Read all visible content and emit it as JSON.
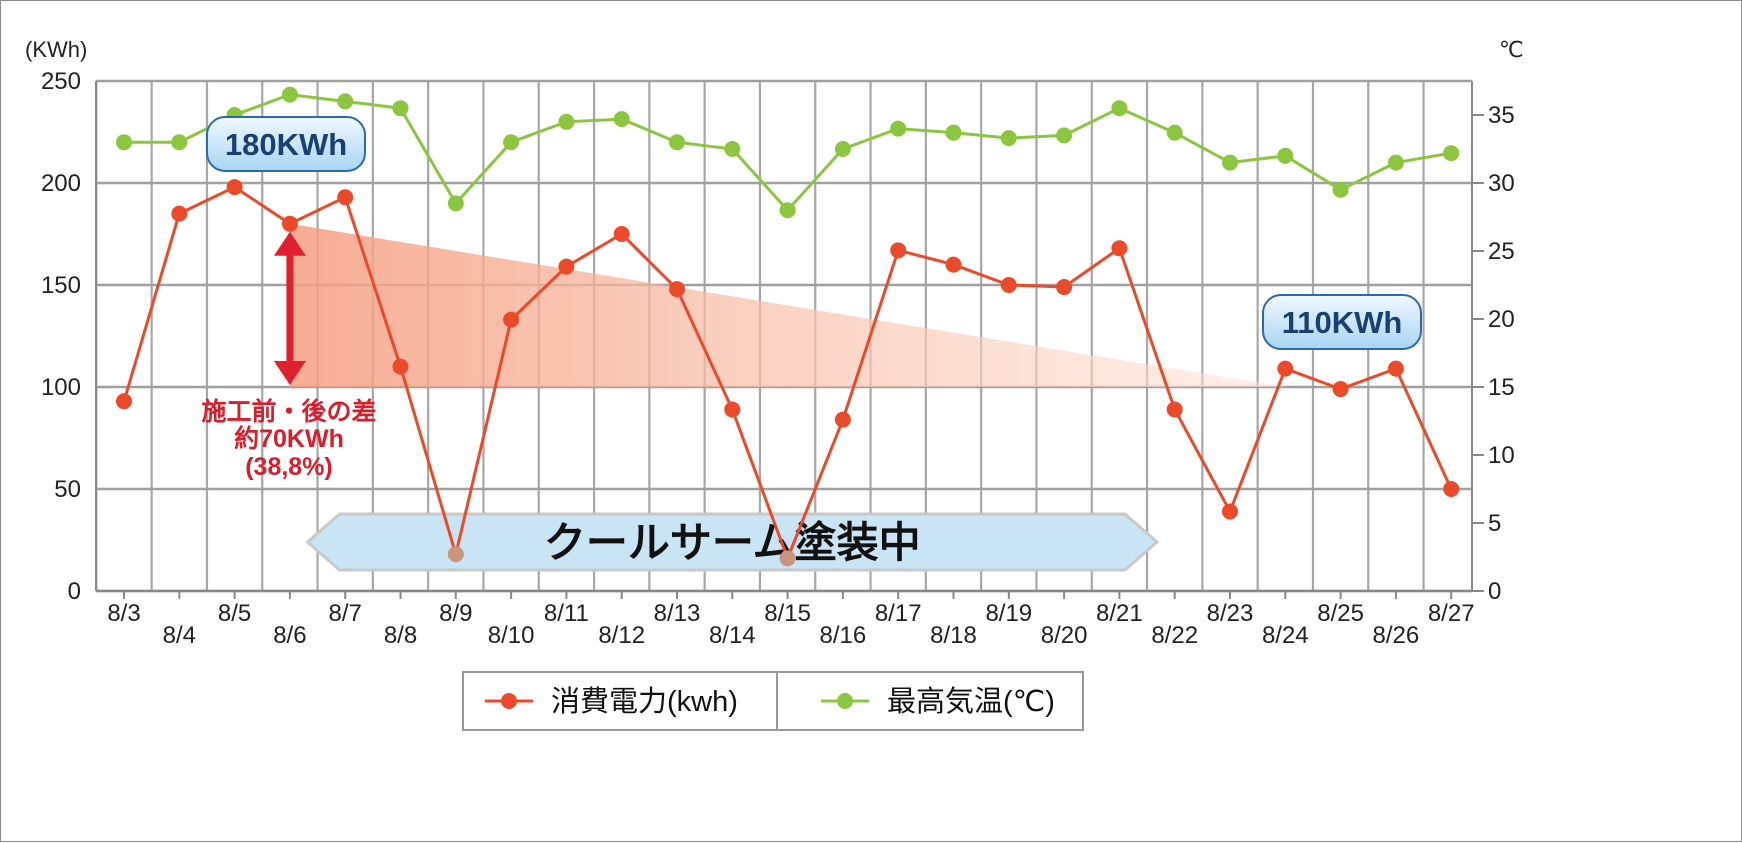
{
  "chart_data": {
    "type": "line",
    "categories": [
      "8/3",
      "8/4",
      "8/5",
      "8/6",
      "8/7",
      "8/8",
      "8/9",
      "8/10",
      "8/11",
      "8/12",
      "8/13",
      "8/14",
      "8/15",
      "8/16",
      "8/17",
      "8/18",
      "8/19",
      "8/20",
      "8/21",
      "8/22",
      "8/23",
      "8/24",
      "8/25",
      "8/26",
      "8/27"
    ],
    "series": [
      {
        "name": "消費電力(kwh)",
        "axis": "left",
        "color": "#ea4a2a",
        "values": [
          93,
          185,
          198,
          180,
          193,
          110,
          18,
          133,
          159,
          175,
          148,
          89,
          16,
          84,
          167,
          160,
          150,
          149,
          168,
          89,
          39,
          109,
          99,
          109,
          50
        ]
      },
      {
        "name": "最高気温(℃)",
        "axis": "right",
        "color": "#8cc63f",
        "values": [
          33,
          33,
          35,
          36.5,
          36,
          35.5,
          28.5,
          33,
          34.5,
          34.7,
          33,
          32.5,
          28,
          32.5,
          34,
          33.7,
          33.3,
          33.5,
          35.5,
          33.7,
          31.5,
          32,
          29.5,
          31.5,
          32.2
        ]
      }
    ],
    "ylabel_left": "(KWh)",
    "ylabel_right": "℃",
    "ylim_left": [
      0,
      250
    ],
    "ylim_right": [
      0,
      37.5
    ],
    "yticks_left": [
      0,
      50,
      100,
      150,
      200,
      250
    ],
    "yticks_right": [
      0,
      5,
      10,
      15,
      20,
      25,
      30,
      35
    ],
    "grid": true,
    "legend_position": "bottom-center",
    "annotations": {
      "before_label": "180KWh",
      "after_label": "110KWh",
      "diff_lines": [
        "施工前・後の差",
        "約70KWh",
        "(38,8%)"
      ],
      "banner": "クールサーム塗装中",
      "banner_start": "8/7",
      "banner_end": "8/21"
    },
    "colors": {
      "arrow": "#e0202e",
      "wedge": "#f7a88c",
      "callout_fill": "#cfe6f7",
      "callout_border": "#2a6ab0",
      "banner_fill": "#c8e4f5",
      "inactive_point": "#c9957c"
    }
  }
}
